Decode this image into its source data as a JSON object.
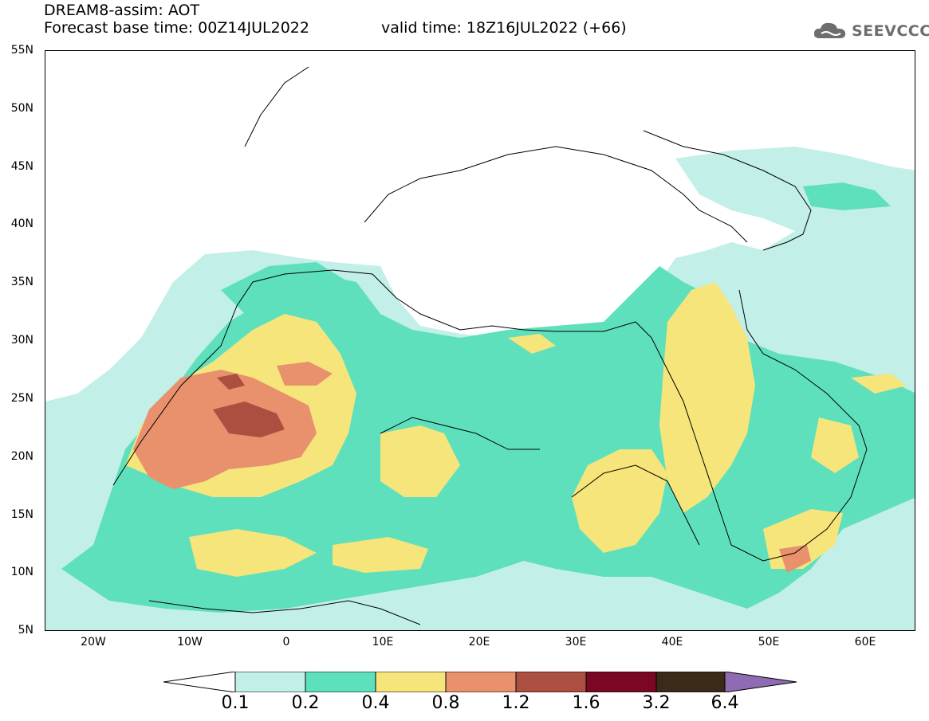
{
  "header": {
    "title_line1": "DREAM8-assim: AOT",
    "title_line2": "Forecast base time: 00Z14JUL2022",
    "valid_time": "valid time: 18Z16JUL2022 (+66)",
    "logo_text": "SEEVCCC"
  },
  "map": {
    "lat_ticks": [
      "55N",
      "50N",
      "45N",
      "40N",
      "35N",
      "30N",
      "25N",
      "20N",
      "15N",
      "10N",
      "5N"
    ],
    "lon_ticks": [
      "20W",
      "10W",
      "0",
      "10E",
      "20E",
      "30E",
      "40E",
      "50E",
      "60E"
    ],
    "extent": {
      "lon": [
        -25,
        65
      ],
      "lat": [
        5,
        55
      ]
    },
    "variable": "AOT"
  },
  "colorbar": {
    "labels": [
      "0.1",
      "0.2",
      "0.4",
      "0.8",
      "1.2",
      "1.6",
      "3.2",
      "6.4"
    ],
    "colors": [
      "#ffffff",
      "#c2efe8",
      "#5fe0bd",
      "#f5e57b",
      "#e8916c",
      "#ac4e40",
      "#7a0823",
      "#3b2a17",
      "#8e6bb2"
    ]
  }
}
